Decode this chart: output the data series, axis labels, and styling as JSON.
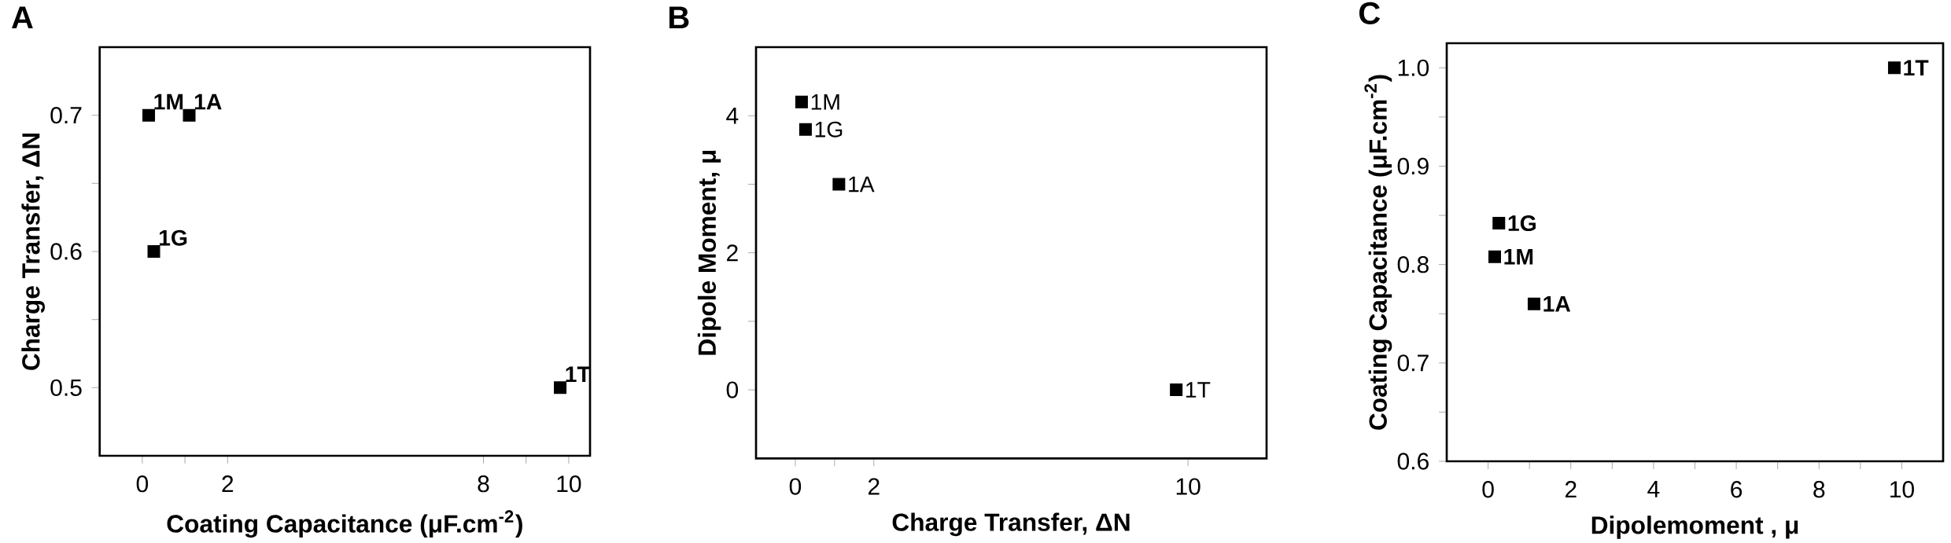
{
  "chart_data": [
    {
      "type": "scatter",
      "title": "A",
      "xlabel": "Coating Capacitance (μF.cm$^{-2}$)",
      "ylabel": "Charge Transfer, ΔN",
      "x": [
        0.15,
        1.1,
        0.27,
        9.8
      ],
      "series": [
        {
          "color": "#000000",
          "values": [
            0.7,
            0.7,
            0.6,
            0.5
          ]
        }
      ],
      "marker": "square",
      "xlim": [
        -1,
        10.5
      ],
      "ylim": [
        0.45,
        0.75
      ],
      "xticks": [
        0,
        {
          "value": 1,
          "label": null
        },
        2,
        8,
        {
          "value": 9,
          "label": null
        },
        10
      ],
      "yticks": [
        0.5,
        {
          "value": 0.55,
          "label": null
        },
        0.6,
        {
          "value": 0.65,
          "label": null
        },
        0.7
      ],
      "annotations": [
        {
          "text": "1M",
          "x": 0.15,
          "y": 0.7
        },
        {
          "text": "1A",
          "x": 1.1,
          "y": 0.7
        },
        {
          "text": "1G",
          "x": 0.27,
          "y": 0.6
        },
        {
          "text": "1T",
          "x": 9.8,
          "y": 0.5
        }
      ]
    },
    {
      "type": "scatter",
      "title": "B",
      "xlabel": "Charge Transfer, ΔN",
      "ylabel": "Dipole Moment, μ",
      "x": [
        0.16,
        0.26,
        1.11,
        9.7
      ],
      "series": [
        {
          "color": "#000000",
          "values": [
            4.2,
            3.8,
            3.0,
            0.0
          ]
        }
      ],
      "marker": "square",
      "xlim": [
        -1,
        12
      ],
      "ylim": [
        -1,
        5
      ],
      "xticks": [
        0,
        {
          "value": 1,
          "label": null
        },
        2,
        10
      ],
      "yticks": [
        0,
        {
          "value": 1,
          "label": null
        },
        2,
        {
          "value": 3,
          "label": null
        },
        4
      ],
      "annotations": [
        {
          "text": "1M",
          "x": 0.16,
          "y": 4.2
        },
        {
          "text": "1G",
          "x": 0.26,
          "y": 3.8
        },
        {
          "text": "1A",
          "x": 1.11,
          "y": 3.0
        },
        {
          "text": "1T",
          "x": 9.7,
          "y": 0.0
        }
      ]
    },
    {
      "type": "scatter",
      "title": "C",
      "xlabel": "Dipolemoment , μ",
      "ylabel": "Coating Capacitance (μF.cm$^{-2}$)",
      "x": [
        9.82,
        0.26,
        0.16,
        1.11
      ],
      "series": [
        {
          "color": "#000000",
          "values": [
            1.0,
            0.842,
            0.808,
            0.76
          ]
        }
      ],
      "marker": "square",
      "xlim": [
        -1,
        11
      ],
      "ylim": [
        0.6,
        1.025
      ],
      "xticks": [
        0,
        {
          "value": 1,
          "label": null
        },
        2,
        {
          "value": 3,
          "label": null
        },
        4,
        {
          "value": 5,
          "label": null
        },
        6,
        {
          "value": 7,
          "label": null
        },
        8,
        {
          "value": 9,
          "label": null
        },
        10
      ],
      "yticks": [
        0.6,
        {
          "value": 0.65,
          "label": null
        },
        0.7,
        {
          "value": 0.75,
          "label": null
        },
        0.8,
        {
          "value": 0.85,
          "label": null
        },
        0.9,
        {
          "value": 0.95,
          "label": null
        },
        {
          "value": 1.0,
          "label": "1.0"
        }
      ],
      "annotations": [
        {
          "text": "1T",
          "x": 9.82,
          "y": 1.0
        },
        {
          "text": "1G",
          "x": 0.26,
          "y": 0.842
        },
        {
          "text": "1M",
          "x": 0.16,
          "y": 0.808
        },
        {
          "text": "1A",
          "x": 1.11,
          "y": 0.76
        }
      ]
    }
  ]
}
